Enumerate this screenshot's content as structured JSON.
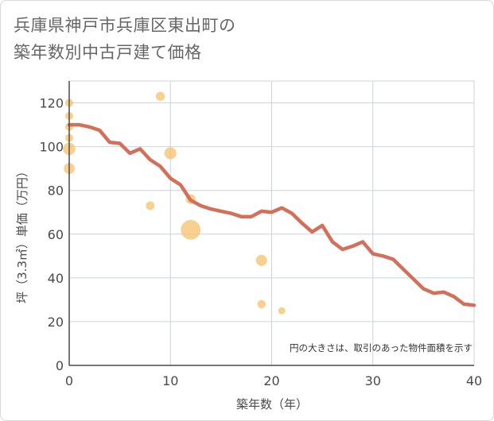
{
  "title_lines": [
    "兵庫県神戸市兵庫区東出町の",
    "築年数別中古戸建て価格"
  ],
  "colors": {
    "line": "#d4705a",
    "bubble": "#f5c26b",
    "grid": "#c8d4e0",
    "axis": "#4a4a4a"
  },
  "chart_data": {
    "type": "scatter",
    "xlabel": "築年数（年）",
    "ylabel": "坪（3.3㎡）単価（万円）",
    "xlim": [
      0,
      40
    ],
    "ylim": [
      0,
      130
    ],
    "x_ticks": [
      0,
      10,
      20,
      30,
      40
    ],
    "y_ticks": [
      0,
      20,
      40,
      60,
      80,
      100,
      120
    ],
    "grid": true,
    "note": "円の大きさは、取引のあった物件面積を示す",
    "line": {
      "x": [
        0,
        1,
        2,
        3,
        4,
        5,
        6,
        7,
        8,
        9,
        10,
        11,
        12,
        13,
        14,
        15,
        16,
        17,
        18,
        19,
        20,
        21,
        22,
        23,
        24,
        25,
        26,
        27,
        28,
        29,
        30,
        31,
        32,
        33,
        34,
        35,
        36,
        37,
        38,
        39,
        40
      ],
      "y": [
        110,
        110,
        109,
        107.5,
        102,
        101.5,
        97,
        99,
        94,
        91,
        85.5,
        82.5,
        75.5,
        73,
        71.5,
        70.5,
        69.5,
        68,
        68,
        70.5,
        70,
        72,
        69.5,
        65,
        61,
        64,
        56.5,
        53,
        54.5,
        56.5,
        51,
        50,
        48.5,
        44,
        39.5,
        35,
        33,
        33.5,
        31.5,
        28,
        27.5
      ]
    },
    "bubbles": [
      {
        "x": 0,
        "y": 120,
        "size": 1.0
      },
      {
        "x": 0,
        "y": 114,
        "size": 1.0
      },
      {
        "x": 0,
        "y": 109,
        "size": 1.0
      },
      {
        "x": 0,
        "y": 104,
        "size": 1.0
      },
      {
        "x": 0,
        "y": 99,
        "size": 2.6
      },
      {
        "x": 0,
        "y": 90,
        "size": 2.0
      },
      {
        "x": 9,
        "y": 123,
        "size": 1.3
      },
      {
        "x": 10,
        "y": 97,
        "size": 2.5
      },
      {
        "x": 8,
        "y": 73,
        "size": 1.2
      },
      {
        "x": 12,
        "y": 76,
        "size": 1.6
      },
      {
        "x": 12,
        "y": 62,
        "size": 7.0
      },
      {
        "x": 19,
        "y": 48,
        "size": 2.1
      },
      {
        "x": 19,
        "y": 28,
        "size": 1.1
      },
      {
        "x": 21,
        "y": 25,
        "size": 0.8
      }
    ]
  }
}
